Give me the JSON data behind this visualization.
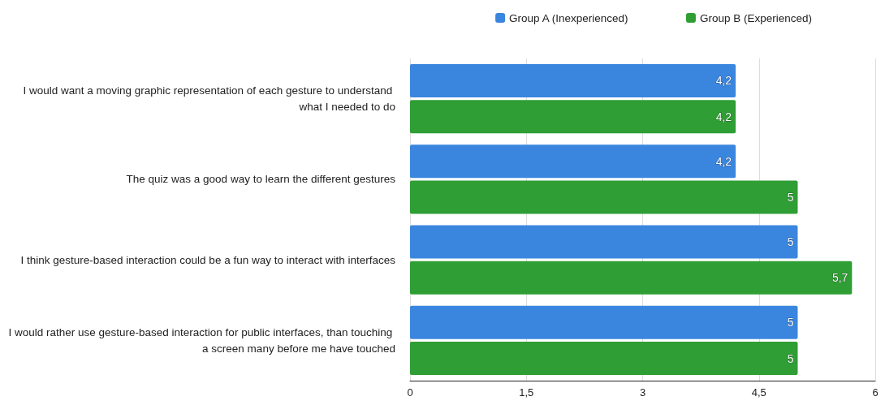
{
  "chart_data": {
    "type": "bar",
    "orientation": "horizontal",
    "categories": [
      "I would want a moving graphic representation of each gesture to understand what I needed to do",
      "The quiz was a good way to learn the different gestures",
      "I think gesture-based interaction could be a fun way to interact with interfaces",
      "I would rather use gesture-based interaction for public interfaces, than touching a screen many before me have touched"
    ],
    "series": [
      {
        "name": "Group A (Inexperienced)",
        "color": "#3a86df",
        "values": [
          4.2,
          4.2,
          5,
          5
        ],
        "value_labels": [
          "4,2",
          "4,2",
          "5",
          "5"
        ]
      },
      {
        "name": "Group B (Experienced)",
        "color": "#2f9e34",
        "values": [
          4.2,
          5,
          5.7,
          5
        ],
        "value_labels": [
          "4,2",
          "5",
          "5,7",
          "5"
        ]
      }
    ],
    "xlim": [
      0,
      6
    ],
    "xticks": [
      0,
      {
        "value": 1.5,
        "label": "1,5"
      },
      3,
      {
        "value": 4.5,
        "label": "4,5"
      },
      6
    ],
    "grid": "x",
    "legend": "top right"
  }
}
